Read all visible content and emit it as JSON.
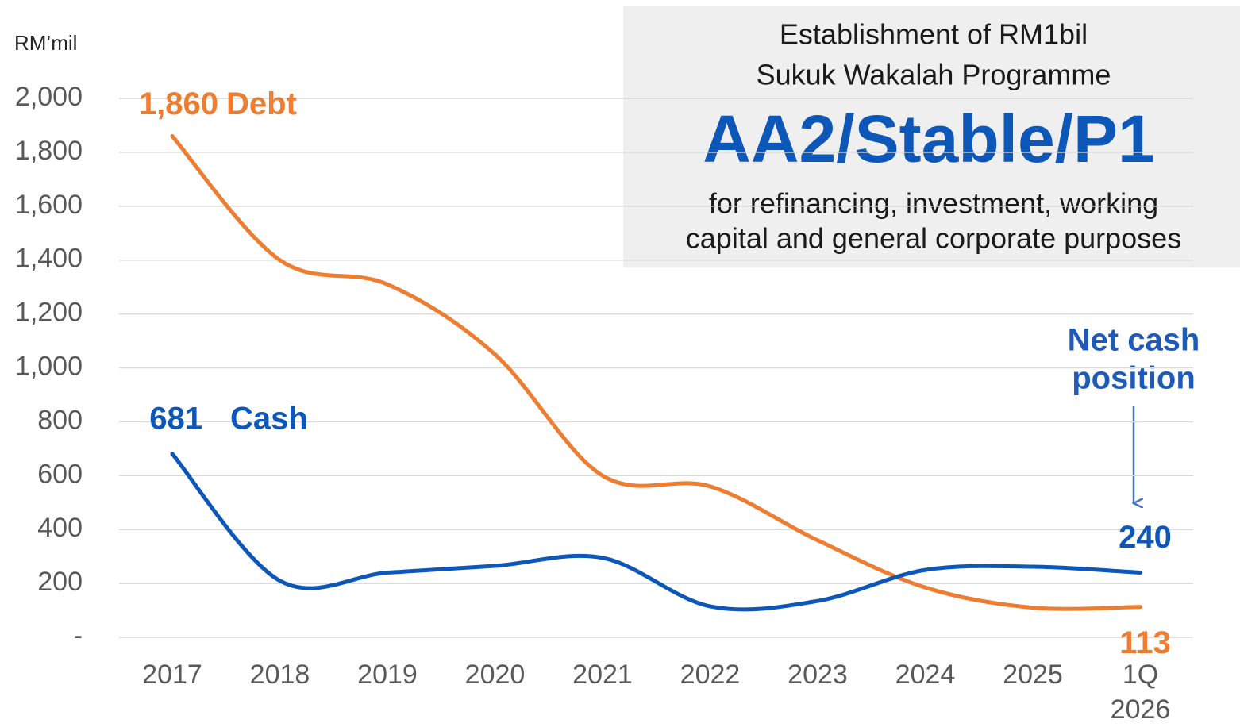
{
  "chart_data": {
    "type": "line",
    "y_label": "RM’mil",
    "categories": [
      "2017",
      "2018",
      "2019",
      "2020",
      "2021",
      "2022",
      "2023",
      "2024",
      "2025",
      "1Q 2026"
    ],
    "series": [
      {
        "name": "Debt",
        "color": "#ed7d31",
        "values": [
          1860,
          1400,
          1310,
          1050,
          600,
          560,
          360,
          185,
          110,
          113
        ],
        "value_labels": [
          "1,860",
          null,
          null,
          null,
          null,
          null,
          null,
          null,
          null,
          "113"
        ]
      },
      {
        "name": "Cash",
        "color": "#0d57b8",
        "values": [
          681,
          210,
          240,
          265,
          295,
          115,
          135,
          250,
          262,
          240
        ],
        "value_labels": [
          "681",
          null,
          null,
          null,
          null,
          null,
          null,
          null,
          null,
          "240"
        ]
      }
    ],
    "ylim": [
      0,
      2000
    ],
    "yticks": [
      {
        "value": 0,
        "label": "-"
      },
      200,
      400,
      600,
      800,
      {
        "value": 1000,
        "label": "1,000"
      },
      {
        "value": 1200,
        "label": "1,200"
      },
      {
        "value": 1400,
        "label": "1,400"
      },
      {
        "value": 1600,
        "label": "1,600"
      },
      {
        "value": 1800,
        "label": "1,800"
      },
      {
        "value": 2000,
        "label": "2,000"
      }
    ],
    "grid": true,
    "annotations": [
      "Net cash",
      "position"
    ],
    "box": {
      "lines": [
        "Establishment of RM1bil",
        "Sukuk Wakalah Programme"
      ],
      "rating": "AA2/Stable/P1",
      "purpose": [
        "for refinancing, investment, working",
        "capital and general corporate purposes"
      ]
    }
  }
}
